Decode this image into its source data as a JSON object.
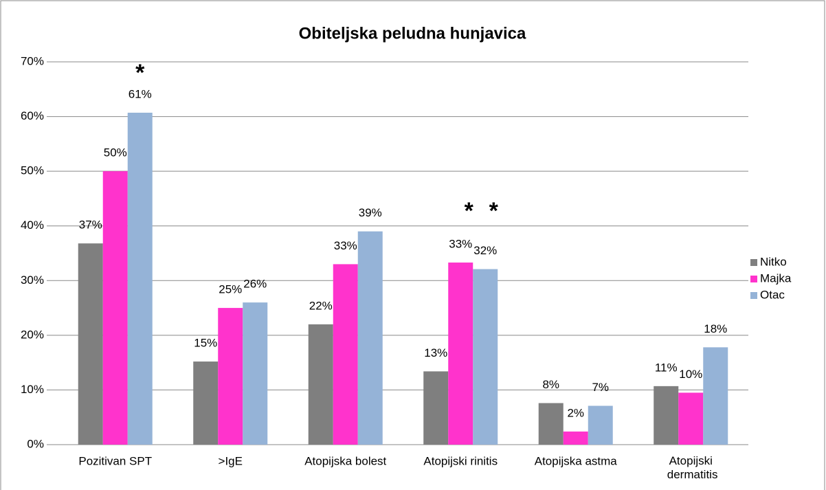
{
  "chart_data": {
    "type": "bar",
    "title": "Obiteljska peludna hunjavica",
    "categories": [
      "Pozitivan SPT",
      ">IgE",
      "Atopijska bolest",
      "Atopijski rinitis",
      "Atopijska astma",
      "Atopijski dermatitis"
    ],
    "series": [
      {
        "name": "Nitko",
        "color": "#7f7f7f",
        "values": [
          36.8,
          15.2,
          22,
          13.4,
          7.6,
          10.7
        ],
        "value_labels": [
          "37%",
          "15%",
          "22%",
          "13%",
          "8%",
          "11%"
        ]
      },
      {
        "name": "Majka",
        "color": "#ff33cc",
        "values": [
          50,
          25,
          33,
          33.3,
          2.4,
          9.5
        ],
        "value_labels": [
          "50%",
          "25%",
          "33%",
          "33%",
          "2%",
          "10%"
        ]
      },
      {
        "name": "Otac",
        "color": "#95b3d7",
        "values": [
          60.7,
          26,
          39,
          32.1,
          7.1,
          17.8
        ],
        "value_labels": [
          "61%",
          "26%",
          "39%",
          "32%",
          "7%",
          "18%"
        ]
      }
    ],
    "annotations": [
      "*",
      "*",
      "*"
    ],
    "ylim": [
      0,
      70
    ],
    "yticks": [
      {
        "value": 0,
        "label": "0%"
      },
      {
        "value": 10,
        "label": "10%"
      },
      {
        "value": 20,
        "label": "20%"
      },
      {
        "value": 30,
        "label": "30%"
      },
      {
        "value": 40,
        "label": "40%"
      },
      {
        "value": 50,
        "label": "50%"
      },
      {
        "value": 60,
        "label": "60%"
      },
      {
        "value": 70,
        "label": "70%"
      }
    ],
    "grid": true,
    "legend": "right"
  }
}
